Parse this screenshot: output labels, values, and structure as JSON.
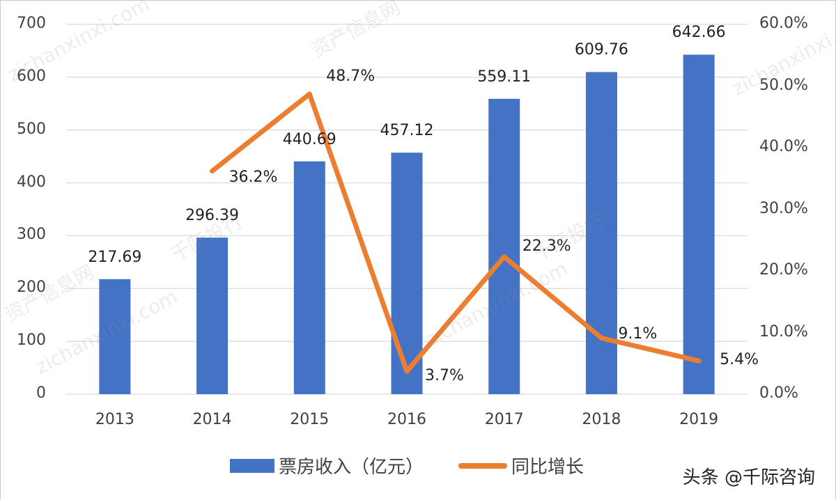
{
  "chart_data": {
    "type": "bar+line",
    "title": "",
    "categories": [
      "2013",
      "2014",
      "2015",
      "2016",
      "2017",
      "2018",
      "2019"
    ],
    "series": [
      {
        "name": "票房收入（亿元）",
        "type": "bar",
        "axis": "left",
        "color": "#4472C4",
        "values": [
          217.69,
          296.39,
          440.69,
          457.12,
          559.11,
          609.76,
          642.66
        ],
        "labels": [
          "217.69",
          "296.39",
          "440.69",
          "457.12",
          "559.11",
          "609.76",
          "642.66"
        ]
      },
      {
        "name": "同比增长",
        "type": "line",
        "axis": "right",
        "color": "#ED7D31",
        "values": [
          null,
          36.2,
          48.7,
          3.7,
          22.3,
          9.1,
          5.4
        ],
        "labels": [
          "",
          "36.2%",
          "48.7%",
          "3.7%",
          "22.3%",
          "9.1%",
          "5.4%"
        ]
      }
    ],
    "y_left": {
      "min": 0,
      "max": 700,
      "ticks": [
        "0",
        "100",
        "200",
        "300",
        "400",
        "500",
        "600",
        "700"
      ]
    },
    "y_right": {
      "min": 0,
      "max": 60,
      "ticks": [
        "0.0%",
        "10.0%",
        "20.0%",
        "30.0%",
        "40.0%",
        "50.0%",
        "60.0%"
      ]
    },
    "xlabel": "",
    "ylabel": "",
    "grid": true,
    "legend_position": "bottom"
  },
  "legend": {
    "bar_label": "票房收入（亿元）",
    "line_label": "同比增长"
  },
  "credit": "头条 @千际咨询",
  "watermarks": [
    "资产信息网",
    "zichanxinxi.com",
    "千际投行"
  ]
}
